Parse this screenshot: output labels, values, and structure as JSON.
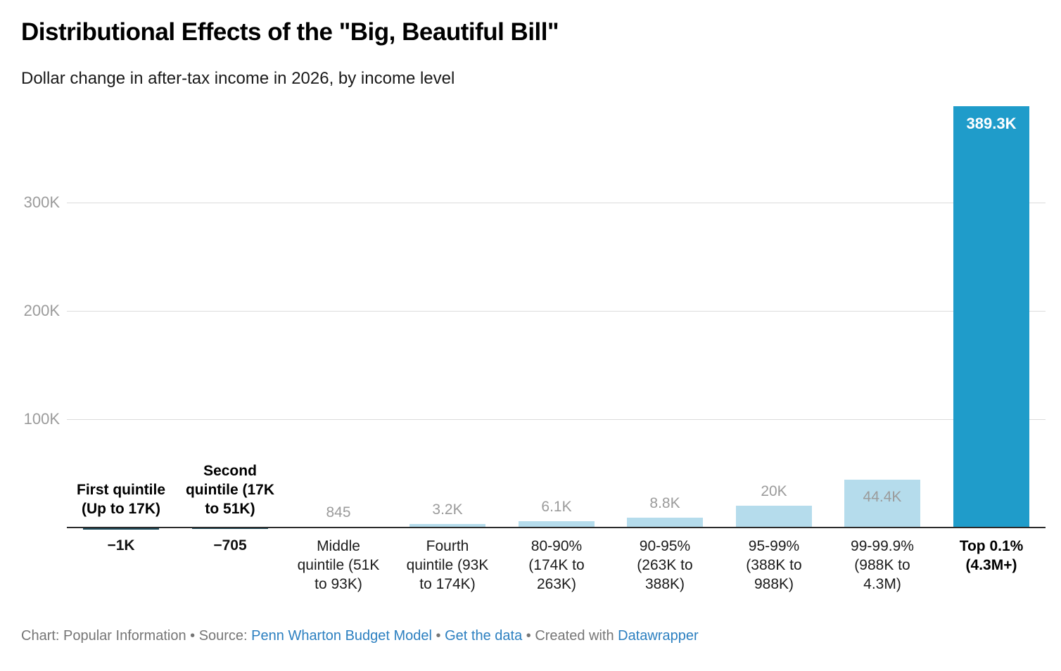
{
  "header": {
    "title": "Distributional Effects of the \"Big, Beautiful Bill\"",
    "subtitle": "Dollar change in after-tax income in 2026, by income level"
  },
  "chart_data": {
    "type": "bar",
    "title": "Distributional Effects of the \"Big, Beautiful Bill\"",
    "subtitle": "Dollar change in after-tax income in 2026, by income level",
    "xlabel": "",
    "ylabel": "",
    "ylim": [
      -1000,
      389300
    ],
    "grid": true,
    "legend": false,
    "y_ticks": [
      {
        "value": 100000,
        "label": "100K"
      },
      {
        "value": 200000,
        "label": "200K"
      },
      {
        "value": 300000,
        "label": "300K"
      }
    ],
    "bars": [
      {
        "category": "First quintile (Up to 17K)",
        "category_lines": [
          "First quintile",
          "(Up to 17K)"
        ],
        "value": -1000,
        "value_label": "−1K",
        "category_bold": true,
        "value_below_axis": true
      },
      {
        "category": "Second quintile (17K to 51K)",
        "category_lines": [
          "Second",
          "quintile (17K",
          "to 51K)"
        ],
        "value": -705,
        "value_label": "−705",
        "category_bold": true,
        "value_below_axis": true
      },
      {
        "category": "Middle quintile (51K to 93K)",
        "category_lines": [
          "Middle",
          "quintile (51K",
          "to 93K)"
        ],
        "value": 845,
        "value_label": "845"
      },
      {
        "category": "Fourth quintile (93K to 174K)",
        "category_lines": [
          "Fourth",
          "quintile (93K",
          "to 174K)"
        ],
        "value": 3200,
        "value_label": "3.2K"
      },
      {
        "category": "80-90% (174K to 263K)",
        "category_lines": [
          "80-90%",
          "(174K to",
          "263K)"
        ],
        "value": 6100,
        "value_label": "6.1K"
      },
      {
        "category": "90-95% (263K to 388K)",
        "category_lines": [
          "90-95%",
          "(263K to",
          "388K)"
        ],
        "value": 8800,
        "value_label": "8.8K"
      },
      {
        "category": "95-99% (388K to 988K)",
        "category_lines": [
          "95-99%",
          "(388K to",
          "988K)"
        ],
        "value": 20000,
        "value_label": "20K"
      },
      {
        "category": "99-99.9% (988K to 4.3M)",
        "category_lines": [
          "99-99.9%",
          "(988K to",
          "4.3M)"
        ],
        "value": 44400,
        "value_label": "44.4K",
        "value_inside": true
      },
      {
        "category": "Top 0.1% (4.3M+)",
        "category_lines": [
          "Top 0.1%",
          "(4.3M+)"
        ],
        "value": 389300,
        "value_label": "389.3K",
        "category_bold": true,
        "highlight": true,
        "value_inside": true
      }
    ],
    "colors": {
      "bar": "#b5dcec",
      "bar_highlight": "#1f9cca",
      "bar_negative": "#1c4a5a",
      "axis_line": "#2b2b2b",
      "gridline": "#dcdcdc",
      "value_label": "#9b9b9b",
      "value_label_highlight": "#ffffff",
      "tick_label": "#9b9b9b",
      "category_label": "#1b1b1b"
    }
  },
  "footer": {
    "prefix": "Chart: Popular Information",
    "sep1": " • ",
    "source_label": "Source: ",
    "source_link": "Penn Wharton Budget Model",
    "sep2": " • ",
    "data_link": "Get the data",
    "sep3": " • ",
    "created_text": "Created with ",
    "tool_link": "Datawrapper"
  }
}
